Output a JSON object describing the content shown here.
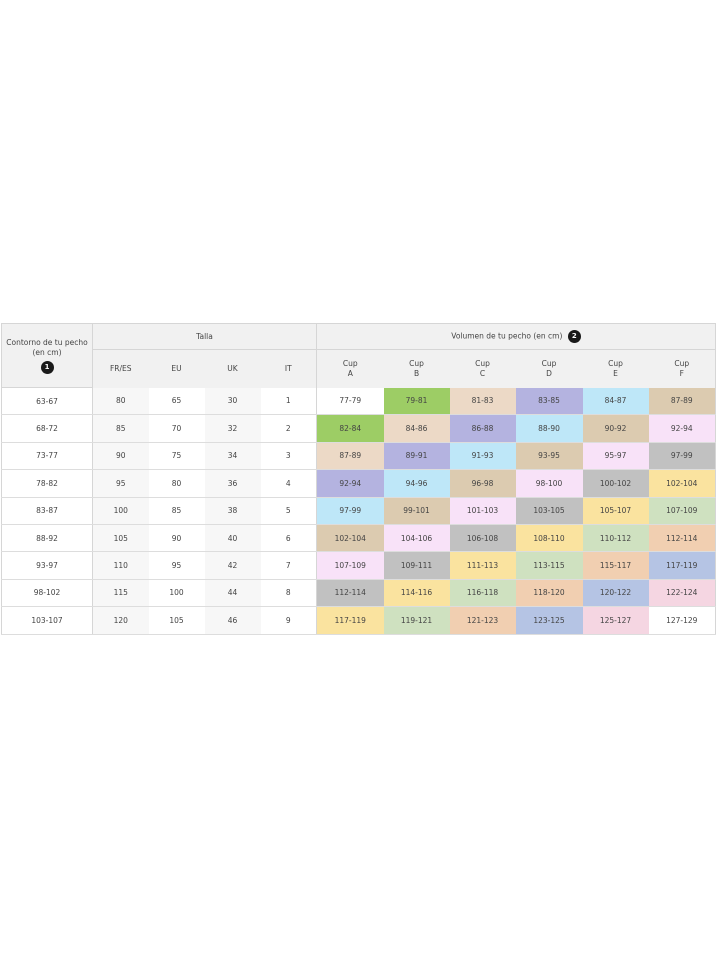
{
  "header": {
    "contour_label": "Contorno de tu pecho (en cm)",
    "contour_badge": "1",
    "size_label": "Talla",
    "volume_label": "Volumen de tu pecho (en cm)",
    "volume_badge": "2",
    "size_systems": [
      "FR/ES",
      "EU",
      "UK",
      "IT"
    ],
    "cups": [
      {
        "top": "Cup",
        "letter": "A"
      },
      {
        "top": "Cup",
        "letter": "B"
      },
      {
        "top": "Cup",
        "letter": "C"
      },
      {
        "top": "Cup",
        "letter": "D"
      },
      {
        "top": "Cup",
        "letter": "E"
      },
      {
        "top": "Cup",
        "letter": "F"
      }
    ]
  },
  "cell_colors": [
    "#ffffff",
    "#9dcd65",
    "#ecd9c6",
    "#b4b3e0",
    "#bee7f8",
    "#dccbb0",
    "#f8e2f8",
    "#c1c1c1",
    "#fae39f",
    "#cfe1c0",
    "#f1cfb1",
    "#b5c4e4",
    "#f5d6e2",
    "#ffffff"
  ],
  "rows": [
    {
      "contour": "63-67",
      "sizes": [
        "80",
        "65",
        "30",
        "1"
      ],
      "cups": [
        "77-79",
        "79-81",
        "81-83",
        "83-85",
        "84-87",
        "87-89"
      ]
    },
    {
      "contour": "68-72",
      "sizes": [
        "85",
        "70",
        "32",
        "2"
      ],
      "cups": [
        "82-84",
        "84-86",
        "86-88",
        "88-90",
        "90-92",
        "92-94"
      ]
    },
    {
      "contour": "73-77",
      "sizes": [
        "90",
        "75",
        "34",
        "3"
      ],
      "cups": [
        "87-89",
        "89-91",
        "91-93",
        "93-95",
        "95-97",
        "97-99"
      ]
    },
    {
      "contour": "78-82",
      "sizes": [
        "95",
        "80",
        "36",
        "4"
      ],
      "cups": [
        "92-94",
        "94-96",
        "96-98",
        "98-100",
        "100-102",
        "102-104"
      ]
    },
    {
      "contour": "83-87",
      "sizes": [
        "100",
        "85",
        "38",
        "5"
      ],
      "cups": [
        "97-99",
        "99-101",
        "101-103",
        "103-105",
        "105-107",
        "107-109"
      ]
    },
    {
      "contour": "88-92",
      "sizes": [
        "105",
        "90",
        "40",
        "6"
      ],
      "cups": [
        "102-104",
        "104-106",
        "106-108",
        "108-110",
        "110-112",
        "112-114"
      ]
    },
    {
      "contour": "93-97",
      "sizes": [
        "110",
        "95",
        "42",
        "7"
      ],
      "cups": [
        "107-109",
        "109-111",
        "111-113",
        "113-115",
        "115-117",
        "117-119"
      ]
    },
    {
      "contour": "98-102",
      "sizes": [
        "115",
        "100",
        "44",
        "8"
      ],
      "cups": [
        "112-114",
        "114-116",
        "116-118",
        "118-120",
        "120-122",
        "122-124"
      ]
    },
    {
      "contour": "103-107",
      "sizes": [
        "120",
        "105",
        "46",
        "9"
      ],
      "cups": [
        "117-119",
        "119-121",
        "121-123",
        "123-125",
        "125-127",
        "127-129"
      ]
    }
  ]
}
